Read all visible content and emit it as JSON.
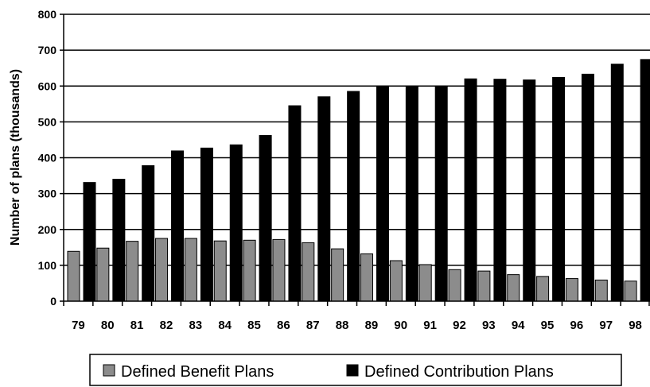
{
  "chart_data": {
    "type": "bar",
    "title": "",
    "xlabel": "",
    "ylabel": "Number of plans (thousands)",
    "ylim": [
      0,
      800
    ],
    "yticks": [
      0,
      100,
      200,
      300,
      400,
      500,
      600,
      700,
      800
    ],
    "grid": "horizontal",
    "legend": "bottom",
    "categories": [
      "79",
      "80",
      "81",
      "82",
      "83",
      "84",
      "85",
      "86",
      "87",
      "88",
      "89",
      "90",
      "91",
      "92",
      "93",
      "94",
      "95",
      "96",
      "97",
      "98"
    ],
    "series": [
      {
        "name": "Defined Benefit Plans",
        "color": "#8c8c8c",
        "values": [
          139,
          148,
          167,
          175,
          175,
          168,
          170,
          172,
          163,
          146,
          132,
          113,
          102,
          88,
          84,
          74,
          69,
          63,
          59,
          56
        ]
      },
      {
        "name": "Defined Contribution Plans",
        "color": "#000000",
        "values": [
          331,
          340,
          378,
          419,
          427,
          436,
          462,
          545,
          570,
          585,
          599,
          599,
          599,
          620,
          619,
          617,
          624,
          633,
          661,
          674
        ]
      }
    ]
  }
}
